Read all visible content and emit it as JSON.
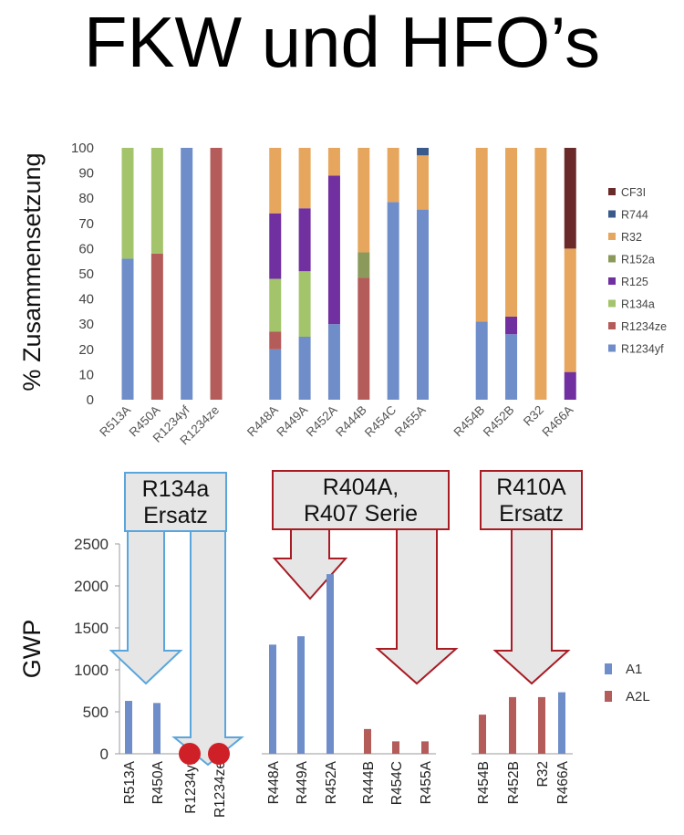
{
  "page": {
    "title": "FKW und HFO’s"
  },
  "callouts": [
    {
      "text": "R134a\nErsatz",
      "border": "#5aa6dc"
    },
    {
      "text": "R404A,\nR407 Serie",
      "border": "#a81c24"
    },
    {
      "text": "R410A\nErsatz",
      "border": "#a81c24"
    }
  ],
  "markers": [
    {
      "category": "R1234yf",
      "color": "#d02027"
    },
    {
      "category": "R1234ze",
      "color": "#d02027"
    }
  ],
  "chart_data": [
    {
      "type": "bar",
      "stacked": true,
      "ylabel": "% Zusammensetzung",
      "ylim": [
        0,
        100
      ],
      "yticks": [
        0,
        10,
        20,
        30,
        40,
        50,
        60,
        70,
        80,
        90,
        100
      ],
      "grid": false,
      "legend_position": "right",
      "categories": [
        "R513A",
        "R450A",
        "R1234yf",
        "R1234ze",
        "",
        "R448A",
        "R449A",
        "R452A",
        "R444B",
        "R454C",
        "R455A",
        "",
        "R454B",
        "R452B",
        "R32",
        "R466A"
      ],
      "series": [
        {
          "name": "R1234yf",
          "color": "#6f8dc9",
          "values": [
            56,
            0,
            100,
            0,
            0,
            20,
            25,
            30,
            0,
            78.5,
            75.5,
            0,
            31,
            26,
            0,
            0
          ]
        },
        {
          "name": "R1234ze",
          "color": "#b35c5a",
          "values": [
            0,
            58,
            0,
            100,
            0,
            7,
            0,
            0,
            48.5,
            0,
            0,
            0,
            0,
            0,
            0,
            0
          ]
        },
        {
          "name": "R134a",
          "color": "#a4c46b",
          "values": [
            44,
            42,
            0,
            0,
            0,
            21,
            26,
            0,
            0,
            0,
            0,
            0,
            0,
            0,
            0,
            0
          ]
        },
        {
          "name": "R125",
          "color": "#7030a0",
          "values": [
            0,
            0,
            0,
            0,
            0,
            26,
            25,
            59,
            0,
            0,
            0,
            0,
            0,
            7,
            0,
            11
          ]
        },
        {
          "name": "R152a",
          "color": "#8b9a5b",
          "values": [
            0,
            0,
            0,
            0,
            0,
            0,
            0,
            0,
            10,
            0,
            0,
            0,
            0,
            0,
            0,
            0
          ]
        },
        {
          "name": "R32",
          "color": "#e6a65d",
          "values": [
            0,
            0,
            0,
            0,
            0,
            26,
            24,
            11,
            41.5,
            21.5,
            21.5,
            0,
            69,
            67,
            100,
            49
          ]
        },
        {
          "name": "R744",
          "color": "#3b5a8c",
          "values": [
            0,
            0,
            0,
            0,
            0,
            0,
            0,
            0,
            0,
            0,
            3,
            0,
            0,
            0,
            0,
            0
          ]
        },
        {
          "name": "CF3I",
          "color": "#6b2a2a",
          "values": [
            0,
            0,
            0,
            0,
            0,
            0,
            0,
            0,
            0,
            0,
            0,
            0,
            0,
            0,
            0,
            40
          ]
        }
      ]
    },
    {
      "type": "bar",
      "ylabel": "GWP",
      "ylim": [
        0,
        2500
      ],
      "yticks": [
        0,
        500,
        1000,
        1500,
        2000,
        2500
      ],
      "grid": false,
      "legend_position": "right",
      "categories": [
        "R513A",
        "R450A",
        "R1234yf",
        "R1234ze",
        "R448A",
        "R449A",
        "R452A",
        "R444B",
        "R454C",
        "R455A",
        "R454B",
        "R452B",
        "R32",
        "R466A"
      ],
      "groups": [
        [
          0,
          3
        ],
        [
          4,
          9
        ],
        [
          10,
          13
        ]
      ],
      "series": [
        {
          "name": "A1",
          "color": "#6f8dc9",
          "values": [
            630,
            605,
            null,
            null,
            1300,
            1400,
            2140,
            null,
            null,
            null,
            null,
            null,
            null,
            733
          ]
        },
        {
          "name": "A2L",
          "color": "#b35c5a",
          "values": [
            null,
            null,
            null,
            null,
            null,
            null,
            null,
            295,
            148,
            148,
            466,
            675,
            675,
            null
          ]
        }
      ]
    }
  ]
}
